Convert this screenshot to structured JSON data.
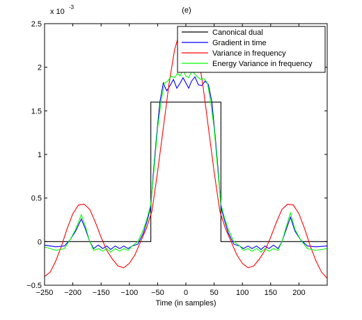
{
  "chart_data": {
    "type": "line",
    "title": "(e)",
    "xlabel": "Time (in samples)",
    "ylabel": "",
    "y_exponent_label": "x 10",
    "y_exponent_power": "-3",
    "xlim": [
      -250,
      250
    ],
    "ylim": [
      -0.5,
      2.5
    ],
    "y_scale_factor": 0.001,
    "xticks": [
      -250,
      -200,
      -150,
      -100,
      -50,
      0,
      50,
      100,
      150,
      200
    ],
    "xtick_labels": [
      "−250",
      "−200",
      "−150",
      "−100",
      "−50",
      "0",
      "50",
      "100",
      "150",
      "200"
    ],
    "yticks": [
      -0.5,
      0,
      0.5,
      1,
      1.5,
      2,
      2.5
    ],
    "ytick_labels": [
      "−0.5",
      "0",
      "0.5",
      "1",
      "1.5",
      "2",
      "2.5"
    ],
    "grid": false,
    "legend_position": "top-right",
    "series": [
      {
        "name": "Canonical dual",
        "color": "#000000",
        "points": [
          [
            -250,
            0
          ],
          [
            -62,
            0
          ],
          [
            -62,
            1.6
          ],
          [
            62,
            1.6
          ],
          [
            62,
            0
          ],
          [
            250,
            0
          ]
        ]
      },
      {
        "name": "Gradient in time",
        "color": "#0000ff",
        "points": [
          [
            -250,
            -0.04
          ],
          [
            -230,
            -0.06
          ],
          [
            -215,
            -0.05
          ],
          [
            -205,
            0.02
          ],
          [
            -195,
            0.12
          ],
          [
            -185,
            0.26
          ],
          [
            -178,
            0.15
          ],
          [
            -170,
            0.0
          ],
          [
            -163,
            -0.08
          ],
          [
            -155,
            -0.04
          ],
          [
            -147,
            -0.08
          ],
          [
            -140,
            -0.05
          ],
          [
            -133,
            -0.09
          ],
          [
            -125,
            -0.05
          ],
          [
            -117,
            -0.08
          ],
          [
            -110,
            -0.05
          ],
          [
            -102,
            -0.08
          ],
          [
            -95,
            -0.05
          ],
          [
            -85,
            -0.03
          ],
          [
            -75,
            0.1
          ],
          [
            -68,
            0.25
          ],
          [
            -62,
            0.4
          ],
          [
            -58,
            0.75
          ],
          [
            -52,
            1.2
          ],
          [
            -46,
            1.6
          ],
          [
            -40,
            1.82
          ],
          [
            -34,
            1.73
          ],
          [
            -28,
            1.79
          ],
          [
            -22,
            1.86
          ],
          [
            -16,
            1.76
          ],
          [
            -10,
            1.82
          ],
          [
            -5,
            1.88
          ],
          [
            0,
            1.82
          ],
          [
            5,
            1.76
          ],
          [
            10,
            1.84
          ],
          [
            16,
            1.89
          ],
          [
            22,
            1.8
          ],
          [
            28,
            1.79
          ],
          [
            34,
            1.84
          ],
          [
            40,
            1.8
          ],
          [
            46,
            1.6
          ],
          [
            52,
            1.2
          ],
          [
            58,
            0.75
          ],
          [
            62,
            0.4
          ],
          [
            68,
            0.25
          ],
          [
            75,
            0.1
          ],
          [
            85,
            -0.03
          ],
          [
            95,
            -0.05
          ],
          [
            102,
            -0.08
          ],
          [
            110,
            -0.05
          ],
          [
            117,
            -0.08
          ],
          [
            125,
            -0.05
          ],
          [
            133,
            -0.09
          ],
          [
            140,
            -0.05
          ],
          [
            147,
            -0.08
          ],
          [
            155,
            -0.04
          ],
          [
            163,
            -0.08
          ],
          [
            170,
            0.0
          ],
          [
            178,
            0.15
          ],
          [
            185,
            0.28
          ],
          [
            193,
            0.12
          ],
          [
            203,
            0.02
          ],
          [
            215,
            -0.05
          ],
          [
            230,
            -0.06
          ],
          [
            250,
            -0.05
          ]
        ]
      },
      {
        "name": "Variance in frequency",
        "color": "#ff0000",
        "points": [
          [
            -250,
            -0.4
          ],
          [
            -240,
            -0.35
          ],
          [
            -230,
            -0.22
          ],
          [
            -220,
            -0.05
          ],
          [
            -210,
            0.15
          ],
          [
            -200,
            0.32
          ],
          [
            -190,
            0.42
          ],
          [
            -180,
            0.43
          ],
          [
            -170,
            0.37
          ],
          [
            -160,
            0.22
          ],
          [
            -150,
            0.05
          ],
          [
            -140,
            -0.1
          ],
          [
            -130,
            -0.2
          ],
          [
            -120,
            -0.28
          ],
          [
            -110,
            -0.3
          ],
          [
            -100,
            -0.25
          ],
          [
            -90,
            -0.15
          ],
          [
            -80,
            0.0
          ],
          [
            -70,
            0.15
          ],
          [
            -60,
            0.35
          ],
          [
            -50,
            0.8
          ],
          [
            -40,
            1.3
          ],
          [
            -30,
            1.8
          ],
          [
            -20,
            2.2
          ],
          [
            -10,
            2.42
          ],
          [
            0,
            2.46
          ],
          [
            10,
            2.42
          ],
          [
            20,
            2.2
          ],
          [
            30,
            1.8
          ],
          [
            40,
            1.3
          ],
          [
            50,
            0.8
          ],
          [
            60,
            0.35
          ],
          [
            70,
            0.15
          ],
          [
            80,
            0.0
          ],
          [
            90,
            -0.15
          ],
          [
            100,
            -0.25
          ],
          [
            110,
            -0.3
          ],
          [
            120,
            -0.28
          ],
          [
            130,
            -0.2
          ],
          [
            140,
            -0.1
          ],
          [
            150,
            0.05
          ],
          [
            160,
            0.22
          ],
          [
            170,
            0.37
          ],
          [
            180,
            0.43
          ],
          [
            190,
            0.42
          ],
          [
            200,
            0.32
          ],
          [
            210,
            0.15
          ],
          [
            220,
            -0.05
          ],
          [
            230,
            -0.22
          ],
          [
            240,
            -0.35
          ],
          [
            250,
            -0.42
          ]
        ]
      },
      {
        "name": "Energy Variance in frequency",
        "color": "#00ff00",
        "points": [
          [
            -250,
            -0.06
          ],
          [
            -230,
            -0.1
          ],
          [
            -215,
            -0.08
          ],
          [
            -205,
            0.02
          ],
          [
            -195,
            0.14
          ],
          [
            -185,
            0.31
          ],
          [
            -178,
            0.18
          ],
          [
            -170,
            0.0
          ],
          [
            -163,
            -0.1
          ],
          [
            -155,
            -0.08
          ],
          [
            -147,
            -0.11
          ],
          [
            -140,
            -0.08
          ],
          [
            -133,
            -0.12
          ],
          [
            -125,
            -0.08
          ],
          [
            -117,
            -0.11
          ],
          [
            -110,
            -0.08
          ],
          [
            -102,
            -0.1
          ],
          [
            -95,
            -0.05
          ],
          [
            -85,
            0.0
          ],
          [
            -75,
            0.14
          ],
          [
            -68,
            0.28
          ],
          [
            -62,
            0.43
          ],
          [
            -56,
            0.85
          ],
          [
            -50,
            1.3
          ],
          [
            -44,
            1.6
          ],
          [
            -38,
            1.82
          ],
          [
            -32,
            1.84
          ],
          [
            -26,
            1.9
          ],
          [
            -20,
            1.88
          ],
          [
            -15,
            1.93
          ],
          [
            -10,
            1.9
          ],
          [
            -5,
            1.97
          ],
          [
            0,
            1.9
          ],
          [
            5,
            1.88
          ],
          [
            10,
            1.95
          ],
          [
            15,
            1.93
          ],
          [
            20,
            1.89
          ],
          [
            26,
            1.86
          ],
          [
            32,
            1.87
          ],
          [
            38,
            1.82
          ],
          [
            44,
            1.6
          ],
          [
            50,
            1.3
          ],
          [
            56,
            0.85
          ],
          [
            62,
            0.43
          ],
          [
            68,
            0.28
          ],
          [
            75,
            0.14
          ],
          [
            85,
            0.0
          ],
          [
            95,
            -0.05
          ],
          [
            102,
            -0.1
          ],
          [
            110,
            -0.08
          ],
          [
            117,
            -0.11
          ],
          [
            125,
            -0.08
          ],
          [
            133,
            -0.12
          ],
          [
            140,
            -0.08
          ],
          [
            147,
            -0.11
          ],
          [
            155,
            -0.08
          ],
          [
            163,
            -0.1
          ],
          [
            170,
            0.0
          ],
          [
            178,
            0.18
          ],
          [
            185,
            0.33
          ],
          [
            193,
            0.14
          ],
          [
            203,
            0.02
          ],
          [
            215,
            -0.08
          ],
          [
            230,
            -0.1
          ],
          [
            250,
            -0.08
          ]
        ]
      }
    ]
  }
}
